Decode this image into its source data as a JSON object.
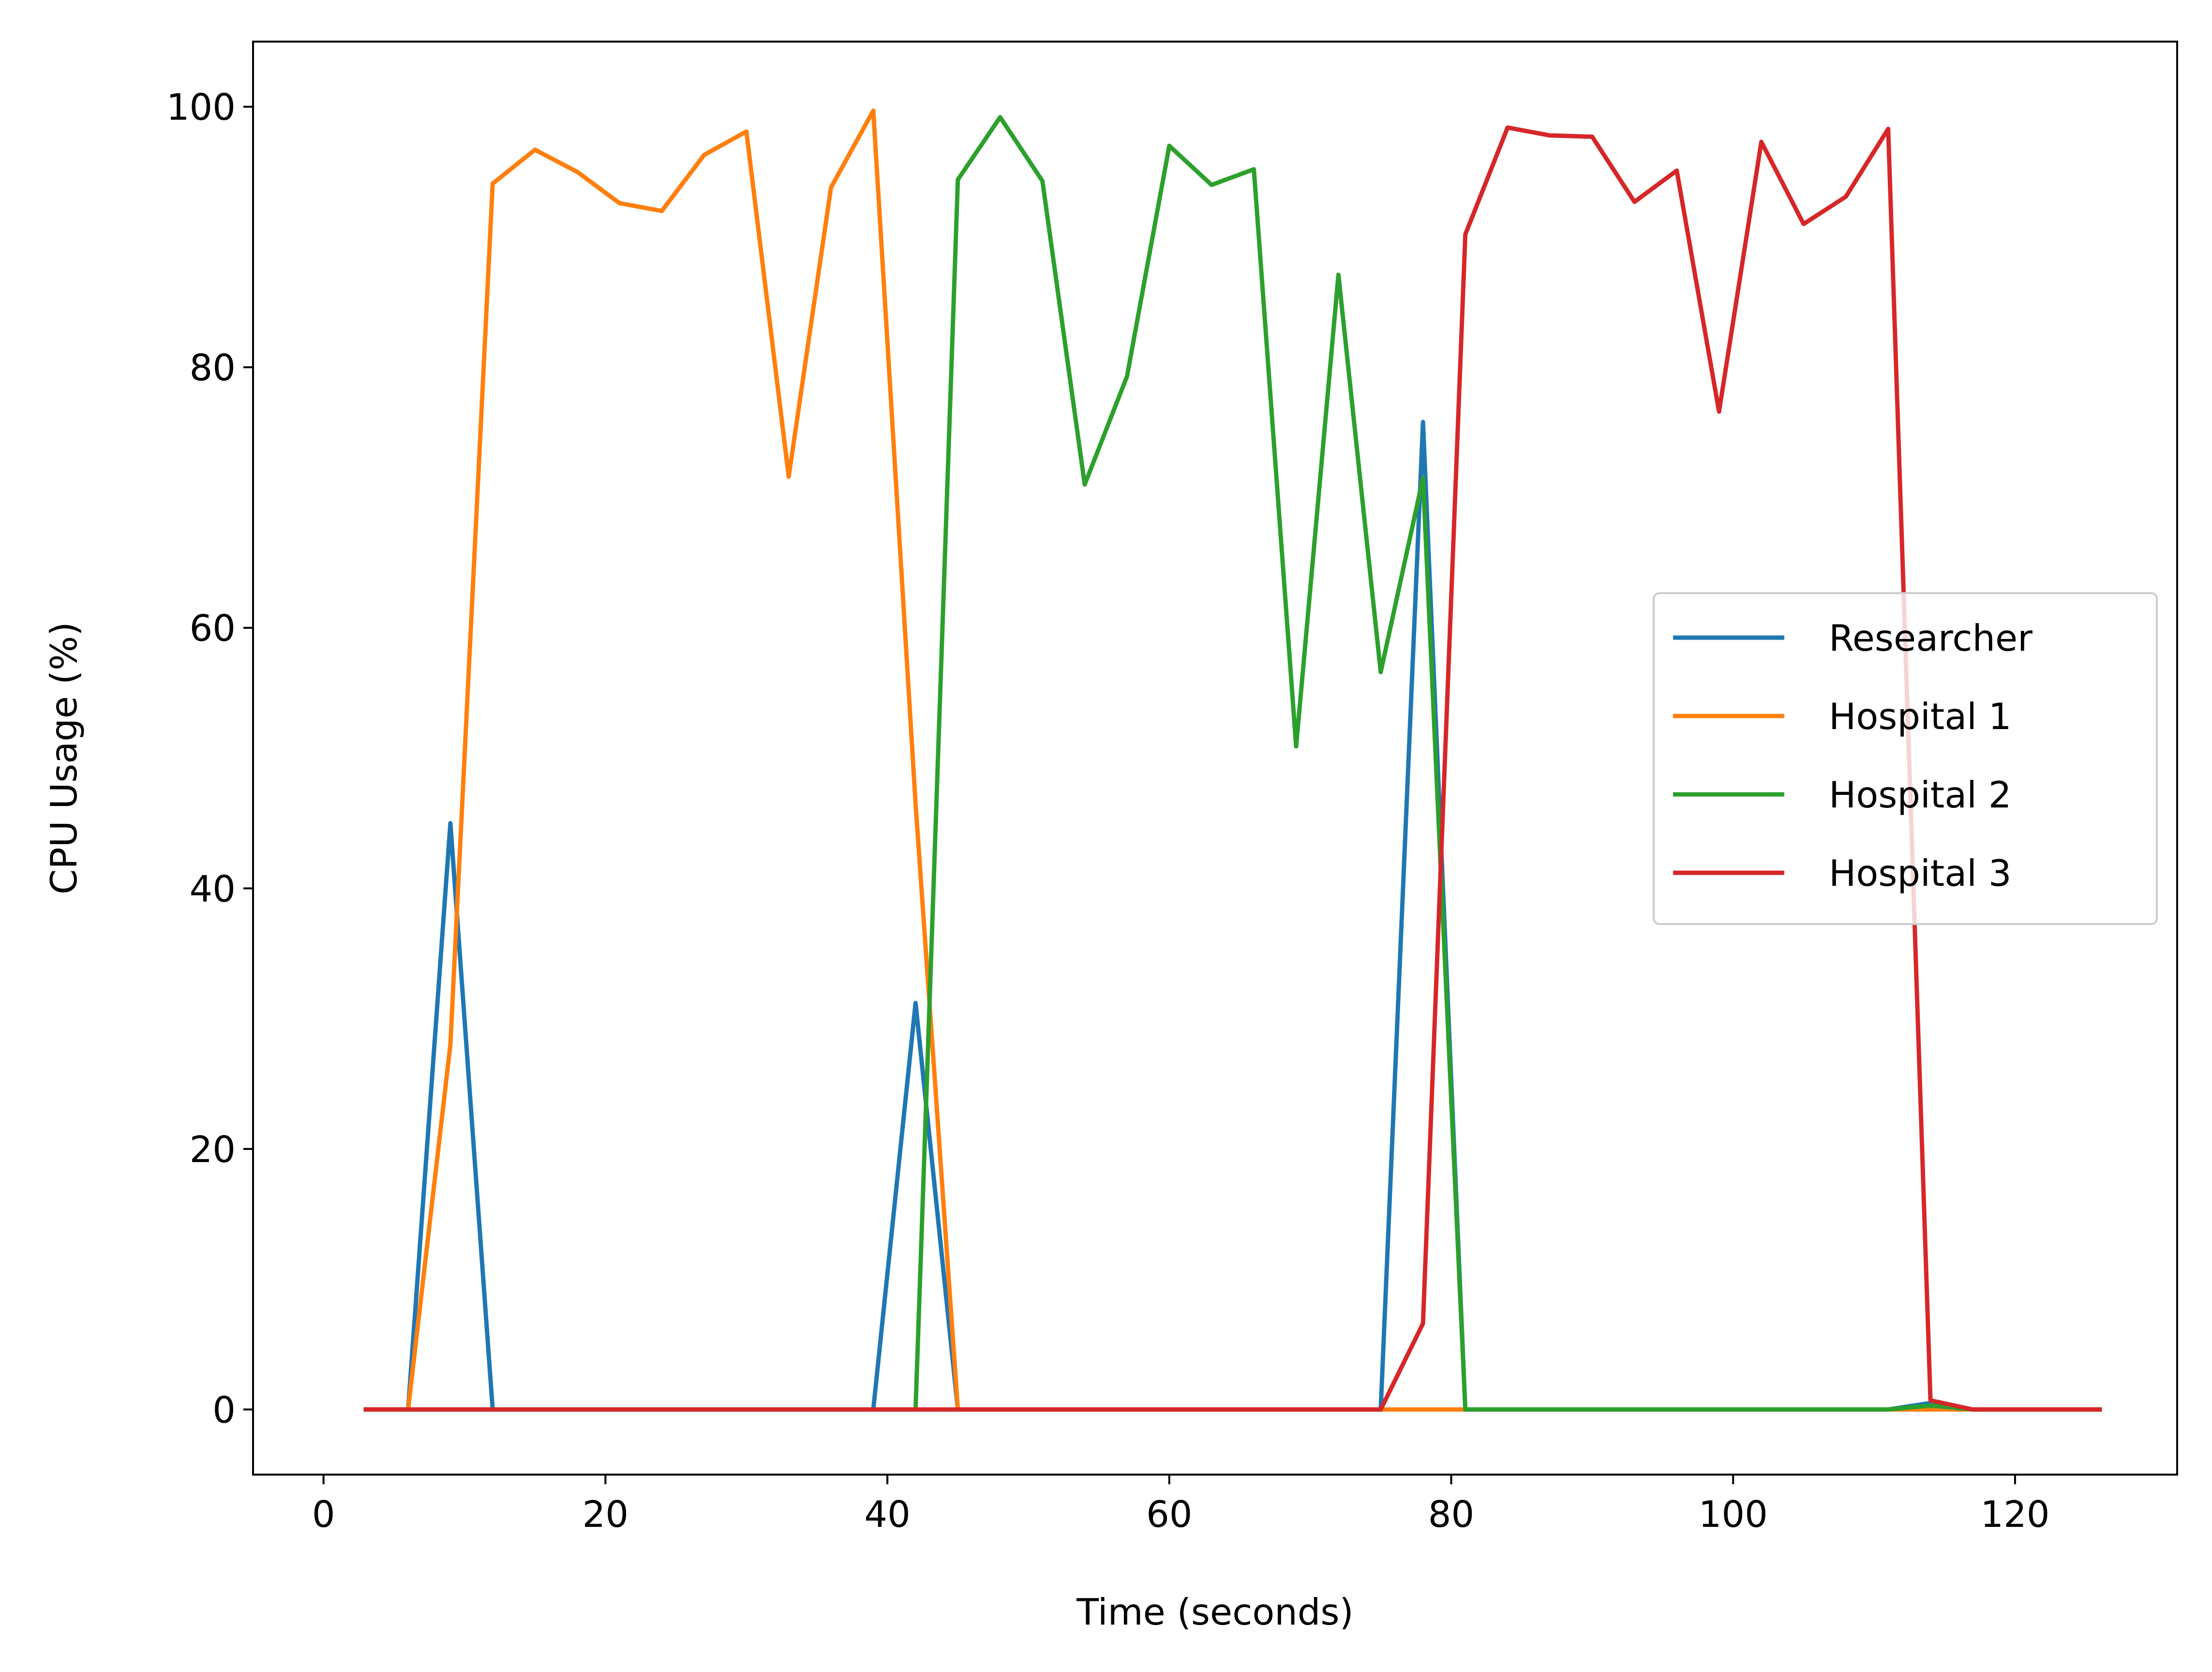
{
  "chart_data": {
    "type": "line",
    "title": "",
    "xlabel": "Time (seconds)",
    "ylabel": "CPU Usage (%)",
    "xlim": [
      -5,
      131.5
    ],
    "ylim": [
      -5,
      105
    ],
    "xticks": [
      0,
      20,
      40,
      60,
      80,
      100,
      120
    ],
    "yticks": [
      0,
      20,
      40,
      60,
      80,
      100
    ],
    "grid": false,
    "legend_position": "center-right",
    "series": [
      {
        "name": "Researcher",
        "color": "#1f77b4",
        "x": [
          3,
          6,
          9,
          12,
          15,
          18,
          21,
          24,
          27,
          30,
          33,
          36,
          39,
          42,
          45,
          48,
          51,
          54,
          57,
          60,
          63,
          66,
          69,
          72,
          75,
          78,
          81,
          84,
          87,
          90,
          93,
          96,
          99,
          102,
          105,
          108,
          111,
          114,
          117,
          120,
          123,
          126
        ],
        "y": [
          0,
          0,
          45,
          0,
          0,
          0,
          0,
          0,
          0,
          0,
          0,
          0,
          0,
          31.2,
          0,
          0,
          0,
          0,
          0,
          0,
          0,
          0,
          0,
          0,
          0,
          75.8,
          0,
          0,
          0,
          0,
          0,
          0,
          0,
          0,
          0,
          0,
          0,
          0.5,
          0,
          0,
          0,
          0
        ]
      },
      {
        "name": "Hospital 1",
        "color": "#ff7f0e",
        "x": [
          3,
          6,
          9,
          12,
          15,
          18,
          21,
          24,
          27,
          30,
          33,
          36,
          39,
          42,
          45,
          48,
          51,
          54,
          57,
          60,
          63,
          66,
          69,
          72,
          75,
          78,
          81,
          84,
          87,
          90,
          93,
          96,
          99,
          102,
          105,
          108,
          111,
          114,
          117,
          120,
          123,
          126
        ],
        "y": [
          0,
          0,
          28,
          94.1,
          96.7,
          95,
          92.6,
          92,
          96.3,
          98.1,
          71.6,
          93.8,
          99.7,
          46.5,
          0,
          0,
          0,
          0,
          0,
          0,
          0,
          0,
          0,
          0,
          0,
          0,
          0,
          0,
          0,
          0,
          0,
          0,
          0,
          0,
          0,
          0,
          0,
          0,
          0,
          0,
          0,
          0
        ]
      },
      {
        "name": "Hospital 2",
        "color": "#2ca02c",
        "x": [
          3,
          6,
          9,
          12,
          15,
          18,
          21,
          24,
          27,
          30,
          33,
          36,
          39,
          42,
          45,
          48,
          51,
          54,
          57,
          60,
          63,
          66,
          69,
          72,
          75,
          78,
          81,
          84,
          87,
          90,
          93,
          96,
          99,
          102,
          105,
          108,
          111,
          114,
          117,
          120,
          123,
          126
        ],
        "y": [
          0,
          0,
          0,
          0,
          0,
          0,
          0,
          0,
          0,
          0,
          0,
          0,
          0,
          0,
          94.4,
          99.2,
          94.3,
          71,
          79.3,
          97,
          94,
          95.2,
          50.9,
          87.1,
          56.6,
          71.5,
          0,
          0,
          0,
          0,
          0,
          0,
          0,
          0,
          0,
          0,
          0,
          0.3,
          0,
          0,
          0,
          0
        ]
      },
      {
        "name": "Hospital 3",
        "color": "#d62728",
        "x": [
          3,
          6,
          9,
          12,
          15,
          18,
          21,
          24,
          27,
          30,
          33,
          36,
          39,
          42,
          45,
          48,
          51,
          54,
          57,
          60,
          63,
          66,
          69,
          72,
          75,
          78,
          81,
          84,
          87,
          90,
          93,
          96,
          99,
          102,
          105,
          108,
          111,
          114,
          117,
          120,
          123,
          126
        ],
        "y": [
          0,
          0,
          0,
          0,
          0,
          0,
          0,
          0,
          0,
          0,
          0,
          0,
          0,
          0,
          0,
          0,
          0,
          0,
          0,
          0,
          0,
          0,
          0,
          0,
          0,
          6.6,
          90.2,
          98.4,
          97.8,
          97.7,
          92.7,
          95.1,
          76.6,
          97.3,
          91,
          93.1,
          98.3,
          0.7,
          0,
          0,
          0,
          0
        ]
      }
    ]
  }
}
